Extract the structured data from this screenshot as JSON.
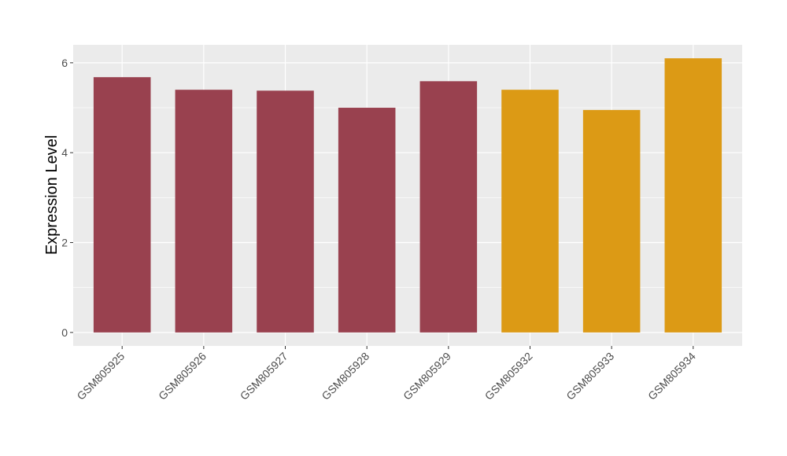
{
  "chart_data": {
    "type": "bar",
    "y_label": "Expression Level",
    "categories": [
      "GSM805925",
      "GSM805926",
      "GSM805927",
      "GSM805928",
      "GSM805929",
      "GSM805932",
      "GSM805933",
      "GSM805934"
    ],
    "values": [
      5.68,
      5.4,
      5.38,
      5.0,
      5.59,
      5.4,
      4.95,
      6.1
    ],
    "colors": [
      "#99414f",
      "#99414f",
      "#99414f",
      "#99414f",
      "#99414f",
      "#dc9a15",
      "#dc9a15",
      "#dc9a15"
    ],
    "ylim": [
      -0.3,
      6.4
    ],
    "yticks": [
      0,
      2,
      4,
      6
    ],
    "grid": true
  }
}
